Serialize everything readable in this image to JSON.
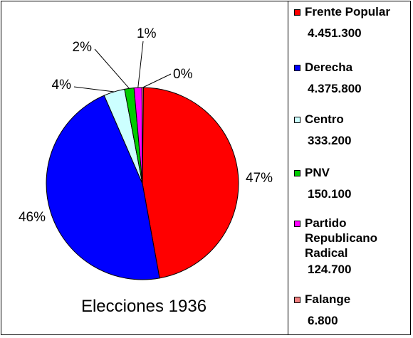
{
  "chart_data": {
    "type": "pie",
    "title": "Elecciones 1936",
    "slices": [
      {
        "label": "Frente Popular",
        "value_label": "4.451.300",
        "value": 4451300,
        "percent_label": "47%",
        "color": "#ff0000"
      },
      {
        "label": "Derecha",
        "value_label": "4.375.800",
        "value": 4375800,
        "percent_label": "46%",
        "color": "#0000ff"
      },
      {
        "label": "Centro",
        "value_label": "333.200",
        "value": 333200,
        "percent_label": "4%",
        "color": "#ccffff"
      },
      {
        "label": "PNV",
        "value_label": "150.100",
        "value": 150100,
        "percent_label": "2%",
        "color": "#00cc00"
      },
      {
        "label": "Partido Republicano Radical",
        "value_label": "124.700",
        "value": 124700,
        "percent_label": "1%",
        "color": "#ff00ff"
      },
      {
        "label": "Falange",
        "value_label": "6.800",
        "value": 6800,
        "percent_label": "0%",
        "color": "#f08080"
      }
    ],
    "legend_position": "right"
  }
}
